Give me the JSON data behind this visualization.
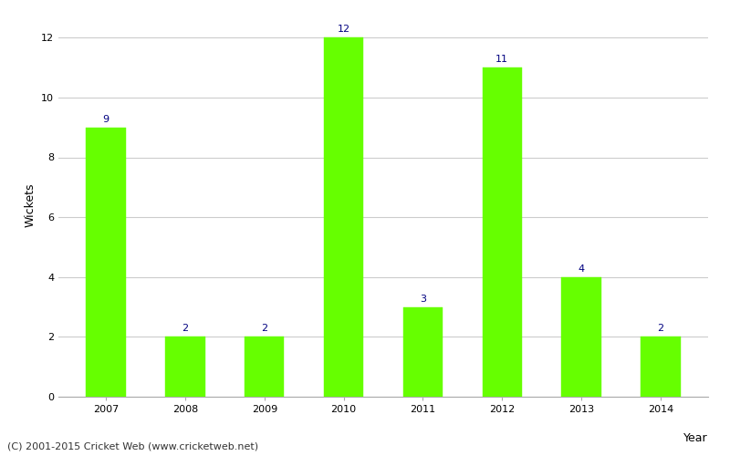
{
  "years": [
    "2007",
    "2008",
    "2009",
    "2010",
    "2011",
    "2012",
    "2013",
    "2014"
  ],
  "wickets": [
    9,
    2,
    2,
    12,
    3,
    11,
    4,
    2
  ],
  "bar_color": "#66ff00",
  "bar_edgecolor": "#66ff00",
  "xlabel": "Year",
  "ylabel": "Wickets",
  "ylim": [
    0,
    12.8
  ],
  "yticks": [
    0,
    2,
    4,
    6,
    8,
    10,
    12
  ],
  "label_color": "#000080",
  "label_fontsize": 8,
  "axis_label_fontsize": 9,
  "tick_fontsize": 8,
  "grid_color": "#cccccc",
  "background_color": "#ffffff",
  "footer_text": "(C) 2001-2015 Cricket Web (www.cricketweb.net)",
  "footer_fontsize": 8,
  "footer_color": "#333333",
  "bar_width": 0.5
}
